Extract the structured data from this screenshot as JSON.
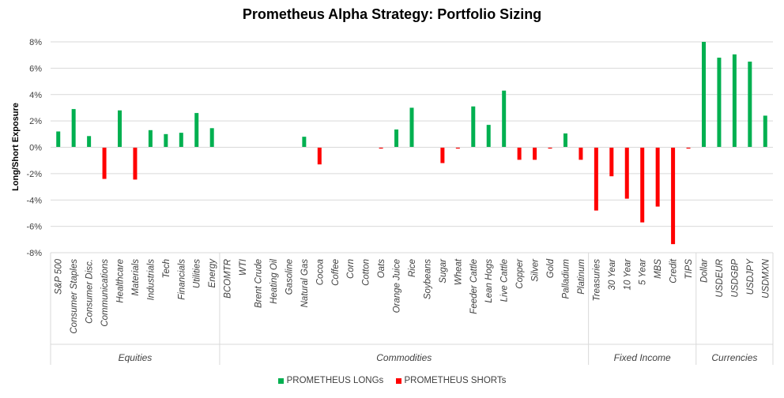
{
  "chart_data": {
    "type": "bar",
    "title": "Prometheus Alpha Strategy: Portfolio Sizing",
    "ylabel": "Long/Short Exposure",
    "ylim": [
      -8,
      8
    ],
    "yticks": [
      "8%",
      "6%",
      "4%",
      "2%",
      "0%",
      "-2%",
      "-4%",
      "-6%",
      "-8%"
    ],
    "series": [
      {
        "name": "PROMETHEUS LONGs",
        "color": "#00B050"
      },
      {
        "name": "PROMETHEUS SHORTs",
        "color": "#FF0000"
      }
    ],
    "groups": [
      {
        "name": "Equities",
        "count": 11
      },
      {
        "name": "Commodities",
        "count": 24
      },
      {
        "name": "Fixed Income",
        "count": 7
      },
      {
        "name": "Currencies",
        "count": 5
      }
    ],
    "categories": [
      "S&P 500",
      "Consumer Staples",
      "Consumer Disc.",
      "Communications",
      "Healthcare",
      "Materials",
      "Industrials",
      "Tech",
      "Financials",
      "Utilities",
      "Energy",
      "BCOMTR",
      "WTI",
      "Brent Crude",
      "Heating Oil",
      "Gasoline",
      "Natural Gas",
      "Cocoa",
      "Coffee",
      "Corn",
      "Cotton",
      "Oats",
      "Orange Juice",
      "Rice",
      "Soybeans",
      "Sugar",
      "Wheat",
      "Feeder Cattle",
      "Lean Hogs",
      "Live Cattle",
      "Copper",
      "Silver",
      "Gold",
      "Palladium",
      "Platinum",
      "Treasuries",
      "30 Year",
      "10 Year",
      "5 Year",
      "MBS",
      "Credit",
      "TIPS",
      "Dollar",
      "USDEUR",
      "USDGBP",
      "USDJPY",
      "USDMXN"
    ],
    "values": [
      1.2,
      2.9,
      0.85,
      -2.4,
      2.8,
      -2.45,
      1.3,
      1.0,
      1.1,
      2.6,
      1.45,
      0,
      0,
      0,
      0,
      0,
      0.8,
      -1.3,
      0,
      0,
      0,
      -0.1,
      1.35,
      3.0,
      0,
      -1.2,
      -0.1,
      3.1,
      1.7,
      4.3,
      -0.95,
      -0.95,
      -0.1,
      1.05,
      -0.95,
      -4.8,
      -2.2,
      -3.9,
      -5.7,
      -4.5,
      -7.35,
      -0.1,
      8.0,
      6.8,
      7.05,
      6.5,
      2.4
    ]
  },
  "legend": {
    "longs_label": "PROMETHEUS LONGs",
    "shorts_label": "PROMETHEUS SHORTs",
    "longs_color": "#00B050",
    "shorts_color": "#FF0000"
  }
}
